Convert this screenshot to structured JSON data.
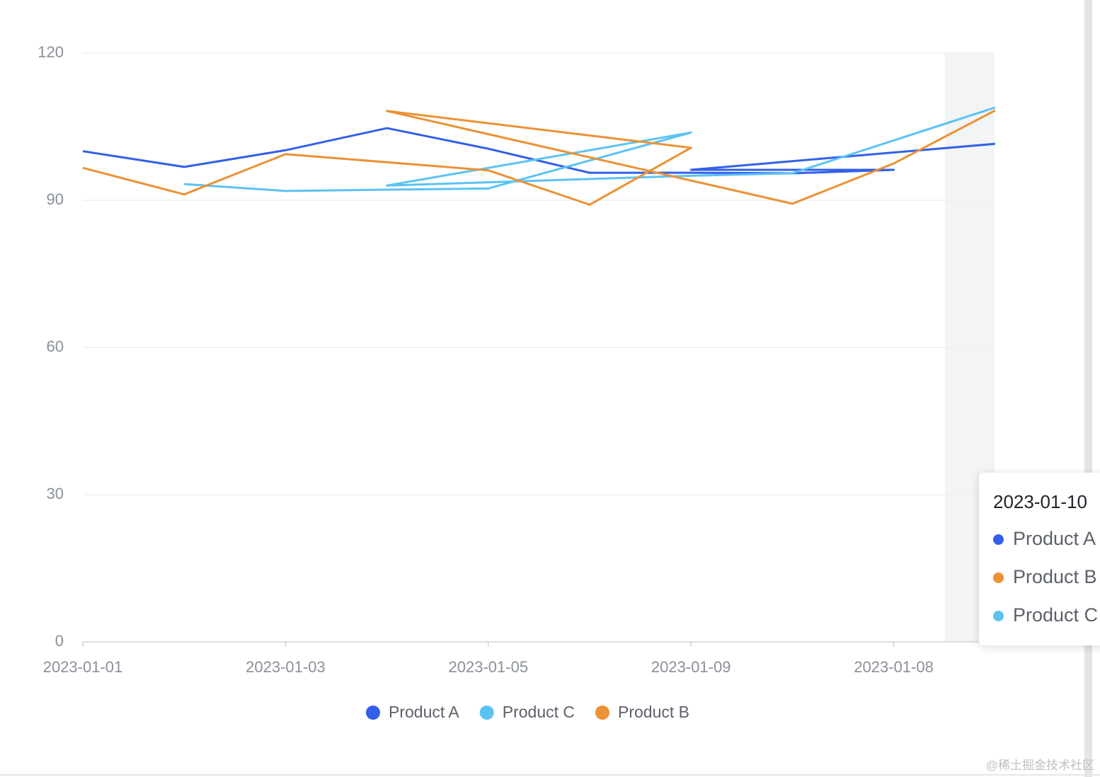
{
  "chart_data": {
    "type": "line",
    "categories": [
      "2023-01-01",
      null,
      "2023-01-03",
      null,
      "2023-01-05",
      null,
      "2023-01-09",
      null,
      "2023-01-08",
      null
    ],
    "ylim": [
      0,
      120
    ],
    "yticks": [
      0,
      30,
      60,
      90,
      120
    ],
    "grid": true,
    "series": [
      {
        "name": "Product A",
        "color": "#3260e8",
        "x": [
          0,
          1,
          2,
          3,
          4,
          5,
          6,
          7,
          8,
          6,
          9
        ],
        "values": [
          100.0,
          96.8,
          100.2,
          104.7,
          100.5,
          95.6,
          95.6,
          95.5,
          96.2,
          96.2,
          101.5
        ]
      },
      {
        "name": "Product C",
        "color": "#5bc3f3",
        "x": [
          1,
          2,
          4,
          6,
          3,
          6,
          7,
          9
        ],
        "values": [
          93.3,
          91.9,
          92.4,
          103.8,
          93.0,
          95.0,
          95.5,
          108.9
        ]
      },
      {
        "name": "Product B",
        "color": "#ec9135",
        "x": [
          0,
          1,
          2,
          4,
          5,
          6,
          3,
          7,
          8,
          9
        ],
        "values": [
          96.6,
          91.2,
          99.4,
          96.1,
          89.1,
          100.7,
          108.2,
          89.3,
          97.5,
          108.3
        ]
      }
    ]
  },
  "tooltip": {
    "title": "2023-01-10",
    "items": [
      {
        "name": "Product A",
        "color": "#3260e8"
      },
      {
        "name": "Product B",
        "color": "#ec9135"
      },
      {
        "name": "Product C",
        "color": "#5bc3f3"
      }
    ]
  },
  "watermark": "@稀土掘金技术社区"
}
